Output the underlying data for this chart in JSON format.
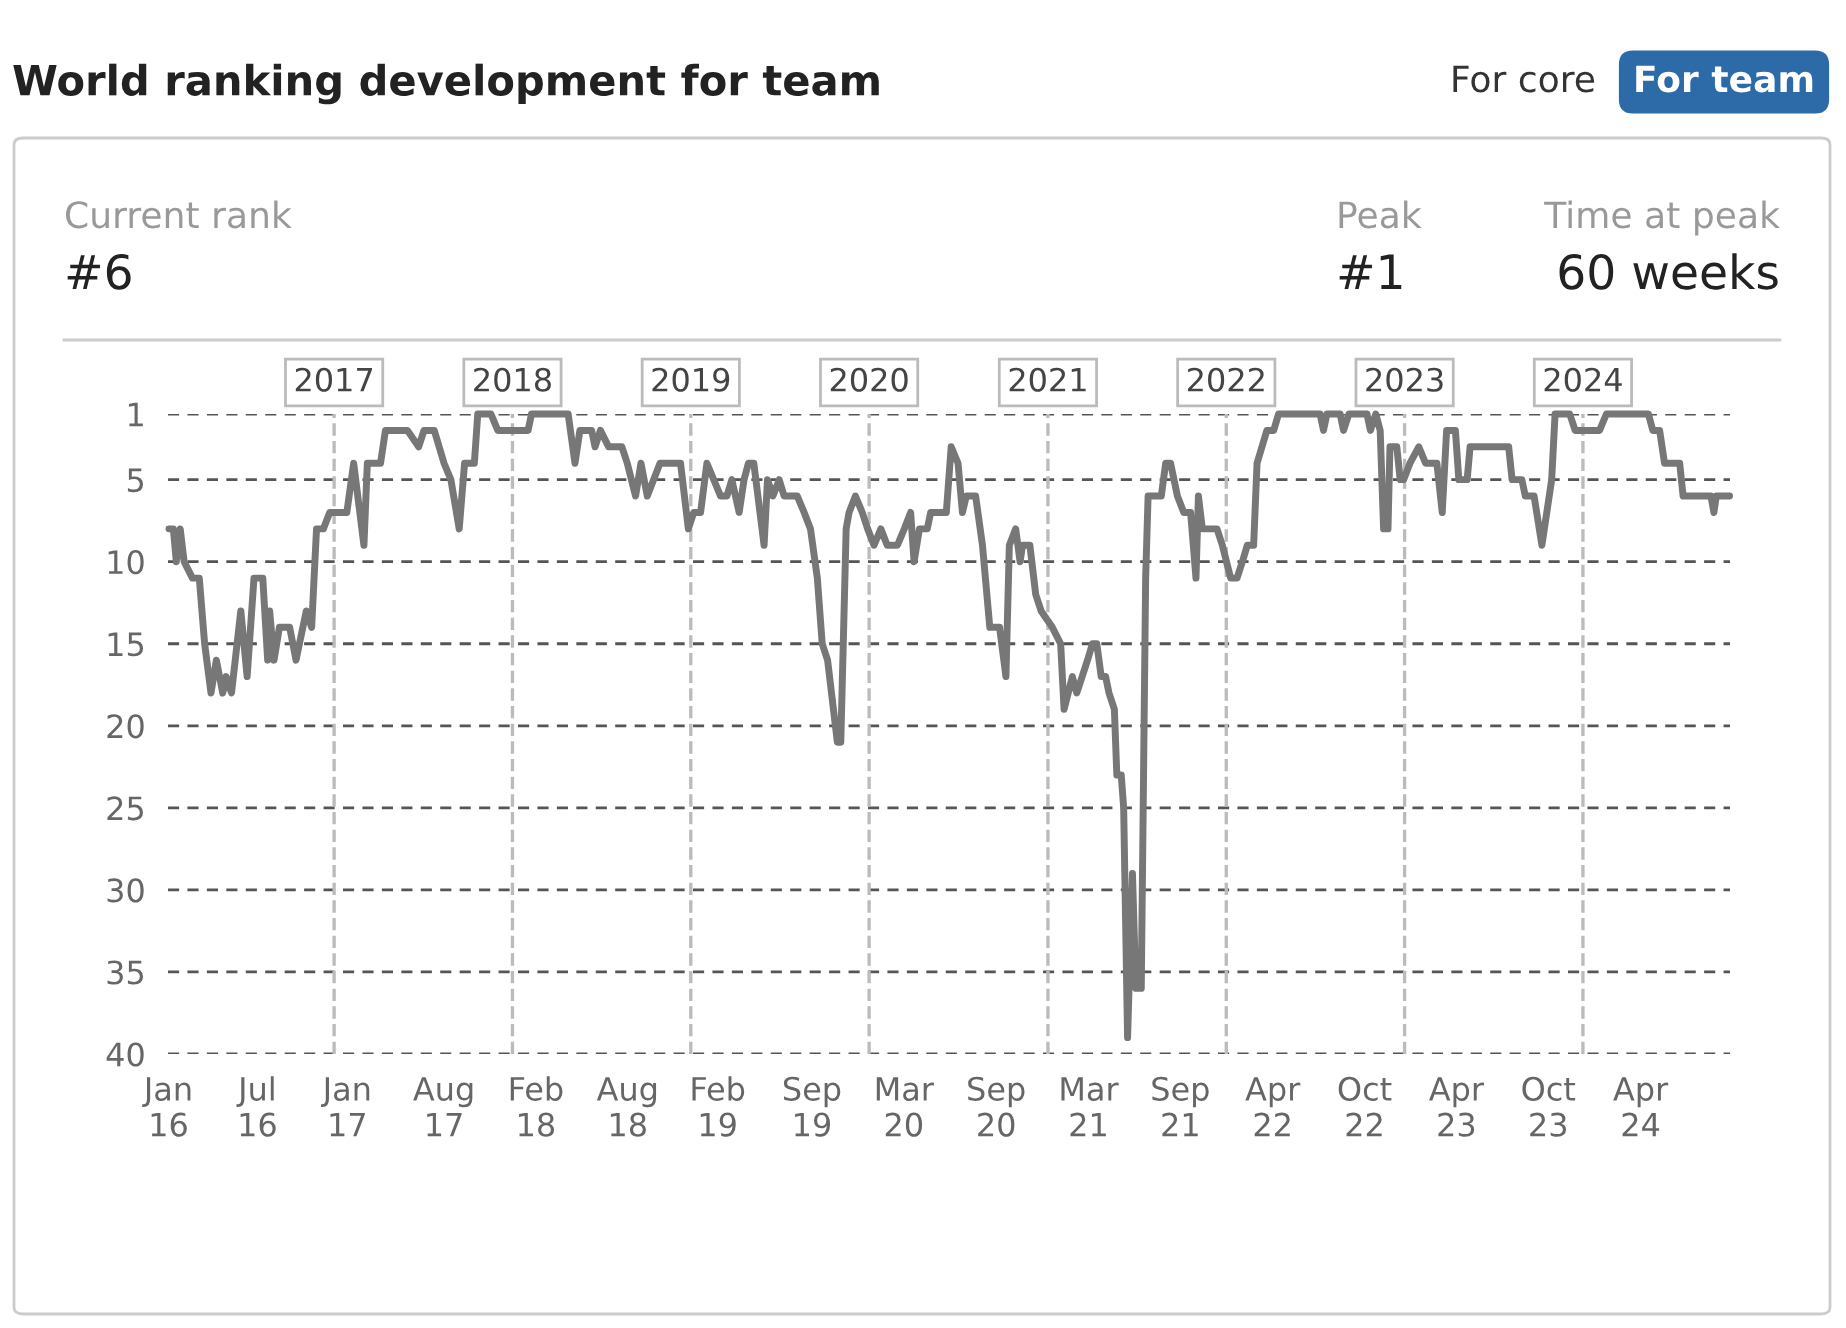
{
  "chart_data": {
    "type": "line",
    "title": "World ranking development for team",
    "annotations": [
      "For core",
      "For team",
      "Current rank",
      "#6",
      "Peak",
      "#1",
      "Time at peak",
      "60 weeks"
    ],
    "x": [
      "2016-01-29",
      "2016-02-07",
      "2016-02-13",
      "2016-02-21",
      "2016-02-29",
      "2016-03-17",
      "2016-03-31",
      "2016-04-11",
      "2016-04-24",
      "2016-05-05",
      "2016-05-18",
      "2016-05-25",
      "2016-06-05",
      "2016-06-24",
      "2016-07-07",
      "2016-07-21",
      "2016-08-08",
      "2016-08-18",
      "2016-08-22",
      "2016-08-31",
      "2016-09-11",
      "2016-10-02",
      "2016-10-15",
      "2016-11-05",
      "2016-11-16",
      "2016-11-26",
      "2016-12-10",
      "2016-12-23",
      "2017-01-27",
      "2017-02-10",
      "2017-03-03",
      "2017-03-10",
      "2017-04-06",
      "2017-04-16",
      "2017-05-31",
      "2017-06-23",
      "2017-07-04",
      "2017-07-25",
      "2017-08-14",
      "2017-08-28",
      "2017-09-14",
      "2017-09-25",
      "2017-10-15",
      "2017-10-22",
      "2017-11-18",
      "2017-12-02",
      "2018-02-02",
      "2018-02-09",
      "2018-04-25",
      "2018-05-09",
      "2018-05-19",
      "2018-06-12",
      "2018-06-19",
      "2018-06-30",
      "2018-07-17",
      "2018-08-13",
      "2018-08-24",
      "2018-09-10",
      "2018-09-21",
      "2018-10-04",
      "2018-10-30",
      "2018-12-11",
      "2018-12-27",
      "2019-01-07",
      "2019-01-21",
      "2019-02-03",
      "2019-03-03",
      "2019-03-16",
      "2019-03-26",
      "2019-04-10",
      "2019-04-20",
      "2019-04-29",
      "2019-05-10",
      "2019-05-31",
      "2019-06-07",
      "2019-06-18",
      "2019-07-01",
      "2019-07-11",
      "2019-08-07",
      "2019-08-21",
      "2019-09-03",
      "2019-09-17",
      "2019-09-27",
      "2019-10-08",
      "2019-10-28",
      "2019-11-04",
      "2019-11-15",
      "2019-11-21",
      "2019-12-04",
      "2019-12-18",
      "2019-12-29",
      "2020-01-11",
      "2020-01-25",
      "2020-02-07",
      "2020-02-28",
      "2020-03-13",
      "2020-03-26",
      "2020-04-02",
      "2020-04-13",
      "2020-04-29",
      "2020-05-06",
      "2020-06-07",
      "2020-06-17",
      "2020-07-01",
      "2020-07-10",
      "2020-07-18",
      "2020-08-06",
      "2020-08-20",
      "2020-09-04",
      "2020-09-24",
      "2020-10-07",
      "2020-10-14",
      "2020-10-27",
      "2020-11-05",
      "2020-11-10",
      "2020-11-25",
      "2020-12-07",
      "2020-12-18",
      "2021-01-10",
      "2021-01-27",
      "2021-02-03",
      "2021-02-20",
      "2021-03-01",
      "2021-03-12",
      "2021-03-23",
      "2021-04-02",
      "2021-04-11",
      "2021-04-20",
      "2021-04-29",
      "2021-05-06",
      "2021-05-17",
      "2021-05-22",
      "2021-05-31",
      "2021-06-05",
      "2021-06-13",
      "2021-06-23",
      "2021-06-30",
      "2021-07-11",
      "2021-07-20",
      "2021-07-25",
      "2021-08-21",
      "2021-08-30",
      "2021-09-09",
      "2021-09-23",
      "2021-10-06",
      "2021-10-20",
      "2021-10-31",
      "2021-11-05",
      "2021-11-13",
      "2021-12-13",
      "2021-12-24",
      "2022-01-10",
      "2022-01-23",
      "2022-02-03",
      "2022-02-13",
      "2022-02-26",
      "2022-03-05",
      "2022-03-25",
      "2022-04-08",
      "2022-04-18",
      "2022-07-12",
      "2022-07-19",
      "2022-07-26",
      "2022-08-22",
      "2022-08-29",
      "2022-09-09",
      "2022-10-16",
      "2022-10-23",
      "2022-11-03",
      "2022-11-12",
      "2022-11-19",
      "2022-11-28",
      "2022-12-02",
      "2022-12-16",
      "2022-12-23",
      "2022-12-30",
      "2023-01-12",
      "2023-01-30",
      "2023-02-13",
      "2023-03-08",
      "2023-03-19",
      "2023-03-28",
      "2023-04-15",
      "2023-04-22",
      "2023-05-09",
      "2023-05-15",
      "2023-08-02",
      "2023-08-09",
      "2023-08-29",
      "2023-09-05",
      "2023-09-23",
      "2023-10-09",
      "2023-10-29",
      "2023-11-05",
      "2023-12-05",
      "2023-12-16",
      "2024-02-04",
      "2024-02-18",
      "2024-05-14",
      "2024-05-23",
      "2024-06-06",
      "2024-06-16",
      "2024-07-17",
      "2024-07-24",
      "2024-09-19",
      "2024-09-25",
      "2024-09-30",
      "2024-10-27"
    ],
    "series": [
      {
        "color": "#777777",
        "values": [
          8,
          8,
          10,
          8,
          10,
          11,
          11,
          15,
          18,
          16,
          18,
          17,
          18,
          13,
          17,
          11,
          11,
          16,
          13,
          16,
          14,
          14,
          16,
          13,
          14,
          8,
          8,
          7,
          7,
          4,
          9,
          4,
          4,
          2,
          2,
          3,
          2,
          2,
          4,
          5,
          8,
          4,
          4,
          1,
          1,
          2,
          2,
          1,
          1,
          4,
          2,
          2,
          3,
          2,
          3,
          3,
          4,
          6,
          4,
          6,
          4,
          4,
          8,
          7,
          7,
          4,
          6,
          6,
          5,
          7,
          5,
          4,
          4,
          9,
          5,
          6,
          5,
          6,
          6,
          7,
          8,
          11,
          15,
          16,
          21,
          21,
          8,
          7,
          6,
          7,
          8,
          9,
          8,
          9,
          9,
          8,
          7,
          10,
          8,
          8,
          7,
          7,
          3,
          4,
          7,
          6,
          6,
          9,
          14,
          14,
          17,
          9,
          8,
          10,
          9,
          9,
          12,
          13,
          14,
          15,
          19,
          17,
          18,
          17,
          16,
          15,
          15,
          17,
          17,
          18,
          19,
          23,
          23,
          25,
          39,
          29,
          36,
          36,
          11,
          6,
          6,
          4,
          4,
          6,
          7,
          7,
          11,
          6,
          8,
          8,
          9,
          11,
          11,
          10,
          9,
          9,
          4,
          2,
          2,
          1,
          1,
          2,
          1,
          1,
          2,
          1,
          1,
          2,
          1,
          2,
          8,
          8,
          3,
          3,
          5,
          5,
          4,
          3,
          4,
          4,
          7,
          2,
          2,
          5,
          5,
          3,
          3,
          5,
          5,
          6,
          6,
          9,
          5,
          1,
          1,
          2,
          2,
          1,
          1,
          2,
          2,
          4,
          4,
          6,
          6,
          7,
          6,
          6
        ]
      }
    ],
    "xlim": [
      "2016-01-27",
      "2024-10-28"
    ],
    "xticks": [
      {
        "value": "2016-01-28",
        "label": "Jan\n16"
      },
      {
        "value": "2016-07-28",
        "label": "Jul\n16"
      },
      {
        "value": "2017-01-28",
        "label": "Jan\n17"
      },
      {
        "value": "2017-08-14",
        "label": "Aug\n17"
      },
      {
        "value": "2018-02-18",
        "label": "Feb\n18"
      },
      {
        "value": "2018-08-25",
        "label": "Aug\n18"
      },
      {
        "value": "2019-02-25",
        "label": "Feb\n19"
      },
      {
        "value": "2019-09-06",
        "label": "Sep\n19"
      },
      {
        "value": "2020-03-12",
        "label": "Mar\n20"
      },
      {
        "value": "2020-09-17",
        "label": "Sep\n20"
      },
      {
        "value": "2021-03-25",
        "label": "Mar\n21"
      },
      {
        "value": "2021-09-29",
        "label": "Sep\n21"
      },
      {
        "value": "2022-04-06",
        "label": "Apr\n22"
      },
      {
        "value": "2022-10-11",
        "label": "Oct\n22"
      },
      {
        "value": "2023-04-17",
        "label": "Apr\n23"
      },
      {
        "value": "2023-10-22",
        "label": "Oct\n23"
      },
      {
        "value": "2024-04-28",
        "label": "Apr\n24"
      }
    ],
    "ylim": [
      40,
      1
    ],
    "yticks": [
      1,
      5,
      10,
      15,
      20,
      25,
      30,
      35,
      40
    ],
    "grid": "y",
    "legend": false,
    "marker": "none",
    "line_style": "solid",
    "ref_lines": [
      {
        "axis": "x",
        "value": "2017-01-01",
        "label": "2017",
        "color": "#bbbbbb",
        "line_style": "dashed"
      },
      {
        "axis": "x",
        "value": "2018-01-01",
        "label": "2018",
        "color": "#bbbbbb",
        "line_style": "dashed"
      },
      {
        "axis": "x",
        "value": "2019-01-01",
        "label": "2019",
        "color": "#bbbbbb",
        "line_style": "dashed"
      },
      {
        "axis": "x",
        "value": "2020-01-01",
        "label": "2020",
        "color": "#bbbbbb",
        "line_style": "dashed"
      },
      {
        "axis": "x",
        "value": "2021-01-01",
        "label": "2021",
        "color": "#bbbbbb",
        "line_style": "dashed"
      },
      {
        "axis": "x",
        "value": "2022-01-01",
        "label": "2022",
        "color": "#bbbbbb",
        "line_style": "dashed"
      },
      {
        "axis": "x",
        "value": "2023-01-01",
        "label": "2023",
        "color": "#bbbbbb",
        "line_style": "dashed"
      },
      {
        "axis": "x",
        "value": "2024-01-01",
        "label": "2024",
        "color": "#bbbbbb",
        "line_style": "dashed"
      }
    ]
  }
}
